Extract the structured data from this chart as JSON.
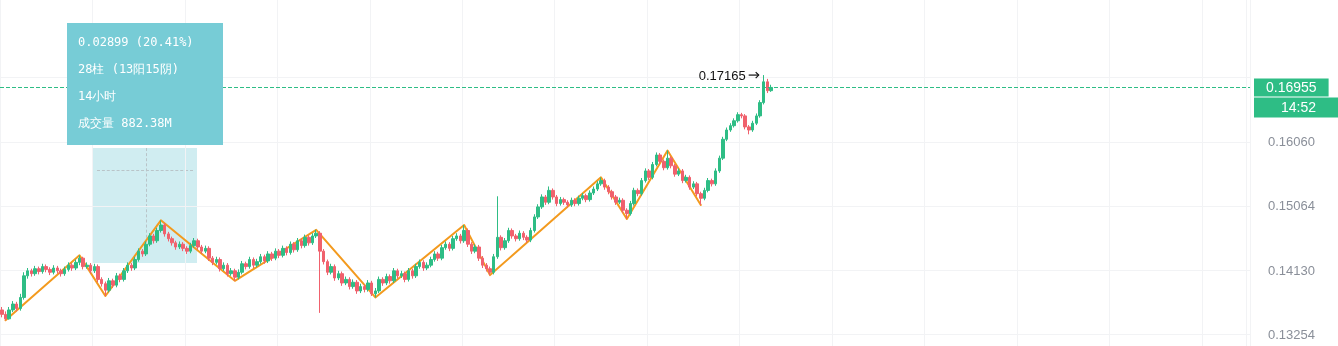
{
  "chart_data": {
    "type": "candlestick",
    "log": true,
    "grid": true,
    "tick_labels": "y",
    "marker": "none",
    "categories": [
      null,
      null,
      null,
      null,
      null,
      null,
      null,
      null,
      null,
      null,
      null,
      null,
      null,
      null,
      null,
      null,
      null,
      null,
      null,
      null,
      null,
      null,
      null,
      null,
      null,
      null,
      null,
      null,
      null,
      null,
      null,
      null,
      null,
      null,
      null,
      null,
      null,
      null,
      null,
      null,
      null,
      null,
      null,
      null,
      null,
      null,
      null,
      null,
      null,
      null,
      null,
      null,
      null,
      null,
      null,
      null,
      null,
      null,
      null,
      null,
      null,
      null,
      null,
      null,
      null,
      null,
      null,
      null,
      null,
      null,
      null,
      null,
      null,
      null,
      null,
      null,
      null,
      null,
      null,
      null,
      null,
      null,
      null,
      null,
      null,
      null,
      null,
      null,
      null,
      null,
      null,
      null,
      null,
      null,
      null,
      null,
      null,
      null,
      null,
      null,
      null,
      null,
      null,
      null,
      null,
      null,
      null,
      null,
      null,
      null,
      null,
      null,
      null,
      null,
      null,
      null,
      null,
      null,
      null,
      null,
      null,
      null,
      null,
      null,
      null,
      null,
      null,
      null,
      null,
      null,
      null,
      null,
      null,
      null,
      null,
      null,
      null,
      null,
      null,
      null,
      null,
      null,
      null,
      null,
      null,
      null,
      null,
      null,
      null,
      null,
      null,
      null,
      null,
      null,
      null,
      null,
      null,
      null,
      null,
      null,
      null,
      null,
      null,
      null,
      null,
      null,
      null,
      null,
      null,
      null,
      null,
      null,
      null,
      null,
      null,
      null,
      null,
      null,
      null,
      null,
      null,
      null,
      null,
      null,
      null,
      null,
      null,
      null,
      null,
      null,
      null,
      null,
      null,
      null,
      null,
      null,
      null,
      null,
      null,
      null,
      null,
      null,
      null,
      null,
      null,
      null,
      null,
      null,
      null,
      null,
      null,
      null,
      null,
      null,
      null,
      null,
      null,
      null,
      null,
      null,
      null,
      null,
      null,
      null,
      null,
      null,
      null,
      null,
      null,
      null,
      null,
      null,
      null,
      null,
      null,
      null,
      null,
      null,
      null,
      null,
      null,
      null,
      null,
      null,
      null,
      null,
      null,
      null,
      null,
      null,
      null,
      null,
      null,
      null,
      null,
      null,
      null,
      null,
      null,
      null,
      null,
      null,
      null,
      null,
      null,
      null,
      null,
      null,
      null,
      null,
      null,
      null,
      null,
      null,
      null,
      null,
      null,
      null,
      null,
      null,
      null,
      null,
      null,
      null,
      null,
      null,
      null,
      null,
      null,
      null,
      null,
      null,
      null,
      null,
      null,
      null,
      null,
      null,
      null,
      null,
      null,
      null,
      null,
      null,
      null,
      null,
      null,
      null,
      null,
      null,
      null,
      null,
      null,
      null,
      null,
      null,
      null,
      null,
      null,
      null,
      null,
      null,
      null,
      null,
      null,
      null,
      null,
      null,
      null,
      null,
      null,
      null,
      null,
      null,
      null,
      null,
      null,
      null
    ],
    "ohlc": [
      [
        0.1358,
        0.1362,
        0.1348,
        0.1352
      ],
      [
        0.1352,
        0.1356,
        0.1344,
        0.1346
      ],
      [
        0.1346,
        0.1362,
        0.1345,
        0.1358
      ],
      [
        0.1358,
        0.137,
        0.1355,
        0.1366
      ],
      [
        0.1366,
        0.1369,
        0.1356,
        0.136
      ],
      [
        0.136,
        0.138,
        0.1357,
        0.1375
      ],
      [
        0.1375,
        0.141,
        0.1372,
        0.1405
      ],
      [
        0.1405,
        0.1416,
        0.1401,
        0.1412
      ],
      [
        0.1412,
        0.1415,
        0.1404,
        0.1408
      ],
      [
        0.1408,
        0.1419,
        0.1405,
        0.1415
      ],
      [
        0.1415,
        0.1418,
        0.1407,
        0.1411
      ],
      [
        0.1411,
        0.1422,
        0.1408,
        0.1418
      ],
      [
        0.1418,
        0.1421,
        0.141,
        0.1414
      ],
      [
        0.1414,
        0.1417,
        0.1406,
        0.141
      ],
      [
        0.141,
        0.142,
        0.1407,
        0.1416
      ],
      [
        0.1416,
        0.1419,
        0.1408,
        0.1412
      ],
      [
        0.1412,
        0.1415,
        0.1404,
        0.1408
      ],
      [
        0.1408,
        0.1418,
        0.1405,
        0.1414
      ],
      [
        0.1414,
        0.1424,
        0.1411,
        0.142
      ],
      [
        0.142,
        0.1423,
        0.1412,
        0.1416
      ],
      [
        0.1416,
        0.1428,
        0.1413,
        0.1424
      ],
      [
        0.1424,
        0.1434,
        0.142,
        0.143
      ],
      [
        0.143,
        0.1432,
        0.1414,
        0.1418
      ],
      [
        0.1418,
        0.1424,
        0.1415,
        0.142
      ],
      [
        0.142,
        0.1423,
        0.1408,
        0.1412
      ],
      [
        0.1412,
        0.1422,
        0.1409,
        0.1418
      ],
      [
        0.1418,
        0.1421,
        0.1396,
        0.14
      ],
      [
        0.14,
        0.1403,
        0.139,
        0.1394
      ],
      [
        0.1394,
        0.1397,
        0.1377,
        0.1385
      ],
      [
        0.1385,
        0.1402,
        0.1382,
        0.1398
      ],
      [
        0.1398,
        0.1401,
        0.1388,
        0.1392
      ],
      [
        0.1392,
        0.1409,
        0.1389,
        0.1405
      ],
      [
        0.1405,
        0.1408,
        0.1396,
        0.14
      ],
      [
        0.14,
        0.1416,
        0.1397,
        0.1412
      ],
      [
        0.1412,
        0.1424,
        0.1409,
        0.142
      ],
      [
        0.142,
        0.1423,
        0.1412,
        0.1416
      ],
      [
        0.1416,
        0.1432,
        0.1413,
        0.1428
      ],
      [
        0.1428,
        0.1444,
        0.1425,
        0.144
      ],
      [
        0.144,
        0.1443,
        0.1432,
        0.1436
      ],
      [
        0.1436,
        0.1454,
        0.1433,
        0.145
      ],
      [
        0.145,
        0.1466,
        0.1447,
        0.1462
      ],
      [
        0.1462,
        0.1465,
        0.1451,
        0.1455
      ],
      [
        0.1455,
        0.1474,
        0.1452,
        0.147
      ],
      [
        0.147,
        0.1485,
        0.1467,
        0.1478
      ],
      [
        0.1478,
        0.1481,
        0.1461,
        0.1465
      ],
      [
        0.1465,
        0.1468,
        0.1454,
        0.1458
      ],
      [
        0.1458,
        0.1461,
        0.1448,
        0.1452
      ],
      [
        0.1452,
        0.1455,
        0.1442,
        0.1446
      ],
      [
        0.1446,
        0.1454,
        0.1443,
        0.145
      ],
      [
        0.145,
        0.1453,
        0.144,
        0.1444
      ],
      [
        0.1444,
        0.1447,
        0.1436,
        0.144
      ],
      [
        0.144,
        0.1452,
        0.1437,
        0.1448
      ],
      [
        0.1448,
        0.1459,
        0.1445,
        0.1455
      ],
      [
        0.1455,
        0.1458,
        0.1442,
        0.1446
      ],
      [
        0.1446,
        0.1449,
        0.1436,
        0.144
      ],
      [
        0.144,
        0.1448,
        0.1437,
        0.1444
      ],
      [
        0.1444,
        0.1447,
        0.1426,
        0.143
      ],
      [
        0.143,
        0.1433,
        0.142,
        0.1424
      ],
      [
        0.1424,
        0.1432,
        0.1421,
        0.1428
      ],
      [
        0.1428,
        0.1431,
        0.1411,
        0.1415
      ],
      [
        0.1415,
        0.1424,
        0.1412,
        0.142
      ],
      [
        0.142,
        0.1423,
        0.1404,
        0.1408
      ],
      [
        0.1408,
        0.1416,
        0.1405,
        0.1412
      ],
      [
        0.1412,
        0.1415,
        0.1398,
        0.1403
      ],
      [
        0.1403,
        0.1414,
        0.14,
        0.141
      ],
      [
        0.141,
        0.1426,
        0.1407,
        0.1422
      ],
      [
        0.1422,
        0.1425,
        0.1414,
        0.1418
      ],
      [
        0.1418,
        0.1432,
        0.1415,
        0.1428
      ],
      [
        0.1428,
        0.1431,
        0.1416,
        0.142
      ],
      [
        0.142,
        0.1429,
        0.1417,
        0.1425
      ],
      [
        0.1425,
        0.1436,
        0.1422,
        0.1432
      ],
      [
        0.1432,
        0.1435,
        0.1422,
        0.1426
      ],
      [
        0.1426,
        0.144,
        0.1423,
        0.1436
      ],
      [
        0.1436,
        0.1439,
        0.1426,
        0.143
      ],
      [
        0.143,
        0.1444,
        0.1427,
        0.144
      ],
      [
        0.144,
        0.1443,
        0.143,
        0.1434
      ],
      [
        0.1434,
        0.1448,
        0.1431,
        0.1444
      ],
      [
        0.1444,
        0.1447,
        0.1434,
        0.1438
      ],
      [
        0.1438,
        0.1454,
        0.1435,
        0.145
      ],
      [
        0.145,
        0.1453,
        0.1438,
        0.1442
      ],
      [
        0.1442,
        0.1459,
        0.1439,
        0.1455
      ],
      [
        0.1455,
        0.1458,
        0.1444,
        0.1448
      ],
      [
        0.1448,
        0.1464,
        0.1445,
        0.146
      ],
      [
        0.146,
        0.1463,
        0.1448,
        0.1452
      ],
      [
        0.1452,
        0.1466,
        0.1449,
        0.1462
      ],
      [
        0.1462,
        0.1471,
        0.1459,
        0.1466
      ],
      [
        0.1466,
        0.1469,
        0.1354,
        0.144
      ],
      [
        0.144,
        0.1443,
        0.1421,
        0.1425
      ],
      [
        0.1425,
        0.1428,
        0.1406,
        0.141
      ],
      [
        0.141,
        0.1422,
        0.1407,
        0.1418
      ],
      [
        0.1418,
        0.1421,
        0.1398,
        0.1402
      ],
      [
        0.1402,
        0.1412,
        0.1399,
        0.1408
      ],
      [
        0.1408,
        0.1411,
        0.1391,
        0.1395
      ],
      [
        0.1395,
        0.1404,
        0.1392,
        0.14
      ],
      [
        0.14,
        0.1403,
        0.1386,
        0.139
      ],
      [
        0.139,
        0.14,
        0.1387,
        0.1396
      ],
      [
        0.1396,
        0.1399,
        0.138,
        0.1384
      ],
      [
        0.1384,
        0.1394,
        0.1381,
        0.139
      ],
      [
        0.139,
        0.1393,
        0.1382,
        0.1386
      ],
      [
        0.1386,
        0.1399,
        0.1383,
        0.1395
      ],
      [
        0.1395,
        0.1398,
        0.1377,
        0.138
      ],
      [
        0.138,
        0.1388,
        0.1375,
        0.1384
      ],
      [
        0.1384,
        0.1404,
        0.1381,
        0.14
      ],
      [
        0.14,
        0.1403,
        0.1391,
        0.1395
      ],
      [
        0.1395,
        0.1408,
        0.1392,
        0.1404
      ],
      [
        0.1404,
        0.1407,
        0.1394,
        0.1398
      ],
      [
        0.1398,
        0.1416,
        0.1395,
        0.1412
      ],
      [
        0.1412,
        0.1415,
        0.1401,
        0.1405
      ],
      [
        0.1405,
        0.1412,
        0.1402,
        0.1408
      ],
      [
        0.1408,
        0.1411,
        0.1396,
        0.14
      ],
      [
        0.14,
        0.1416,
        0.1397,
        0.1412
      ],
      [
        0.1412,
        0.1415,
        0.1401,
        0.1405
      ],
      [
        0.1405,
        0.1422,
        0.1402,
        0.1418
      ],
      [
        0.1418,
        0.1428,
        0.1415,
        0.1424
      ],
      [
        0.1424,
        0.1427,
        0.1412,
        0.1416
      ],
      [
        0.1416,
        0.1424,
        0.1413,
        0.142
      ],
      [
        0.142,
        0.1432,
        0.1417,
        0.1428
      ],
      [
        0.1428,
        0.144,
        0.1425,
        0.1436
      ],
      [
        0.1436,
        0.1439,
        0.1426,
        0.143
      ],
      [
        0.143,
        0.1449,
        0.1427,
        0.1445
      ],
      [
        0.1445,
        0.1454,
        0.1442,
        0.145
      ],
      [
        0.145,
        0.1453,
        0.144,
        0.1444
      ],
      [
        0.1444,
        0.1462,
        0.1441,
        0.1458
      ],
      [
        0.1458,
        0.1466,
        0.1455,
        0.1462
      ],
      [
        0.1462,
        0.1465,
        0.1451,
        0.1455
      ],
      [
        0.1455,
        0.1478,
        0.1452,
        0.147
      ],
      [
        0.147,
        0.1473,
        0.1446,
        0.145
      ],
      [
        0.145,
        0.1453,
        0.1436,
        0.144
      ],
      [
        0.144,
        0.145,
        0.1437,
        0.1446
      ],
      [
        0.1446,
        0.1449,
        0.1426,
        0.143
      ],
      [
        0.143,
        0.1433,
        0.1416,
        0.142
      ],
      [
        0.142,
        0.1423,
        0.1411,
        0.1415
      ],
      [
        0.1415,
        0.1418,
        0.1406,
        0.141
      ],
      [
        0.141,
        0.1436,
        0.1407,
        0.1432
      ],
      [
        0.1432,
        0.1521,
        0.1429,
        0.146
      ],
      [
        0.146,
        0.1463,
        0.1441,
        0.1445
      ],
      [
        0.1445,
        0.1459,
        0.1442,
        0.1455
      ],
      [
        0.1455,
        0.1474,
        0.1452,
        0.147
      ],
      [
        0.147,
        0.1473,
        0.1458,
        0.1462
      ],
      [
        0.1462,
        0.1465,
        0.1454,
        0.1458
      ],
      [
        0.1458,
        0.147,
        0.1455,
        0.1466
      ],
      [
        0.1466,
        0.1469,
        0.1456,
        0.146
      ],
      [
        0.146,
        0.1463,
        0.1452,
        0.1456
      ],
      [
        0.1456,
        0.1474,
        0.1453,
        0.147
      ],
      [
        0.147,
        0.1494,
        0.1467,
        0.149
      ],
      [
        0.149,
        0.1509,
        0.1487,
        0.1505
      ],
      [
        0.1505,
        0.1524,
        0.1502,
        0.152
      ],
      [
        0.152,
        0.1523,
        0.1508,
        0.1512
      ],
      [
        0.1512,
        0.1536,
        0.1509,
        0.153
      ],
      [
        0.153,
        0.1533,
        0.1516,
        0.152
      ],
      [
        0.152,
        0.1523,
        0.1506,
        0.151
      ],
      [
        0.151,
        0.152,
        0.1507,
        0.1516
      ],
      [
        0.1516,
        0.1519,
        0.1508,
        0.1512
      ],
      [
        0.1512,
        0.1515,
        0.1504,
        0.1508
      ],
      [
        0.1508,
        0.1519,
        0.1505,
        0.1515
      ],
      [
        0.1515,
        0.1518,
        0.1506,
        0.151
      ],
      [
        0.151,
        0.1522,
        0.1507,
        0.1518
      ],
      [
        0.1518,
        0.1526,
        0.1515,
        0.1522
      ],
      [
        0.1522,
        0.1525,
        0.1512,
        0.1516
      ],
      [
        0.1516,
        0.153,
        0.1513,
        0.1526
      ],
      [
        0.1526,
        0.1536,
        0.1523,
        0.1532
      ],
      [
        0.1532,
        0.1544,
        0.1529,
        0.154
      ],
      [
        0.154,
        0.155,
        0.1537,
        0.1545
      ],
      [
        0.1545,
        0.1548,
        0.1531,
        0.1535
      ],
      [
        0.1535,
        0.1538,
        0.1524,
        0.1528
      ],
      [
        0.1528,
        0.1531,
        0.1516,
        0.152
      ],
      [
        0.152,
        0.1523,
        0.1508,
        0.1512
      ],
      [
        0.1512,
        0.1519,
        0.1509,
        0.1515
      ],
      [
        0.1515,
        0.1518,
        0.1496,
        0.15
      ],
      [
        0.15,
        0.1503,
        0.1487,
        0.1495
      ],
      [
        0.1495,
        0.1514,
        0.1492,
        0.151
      ],
      [
        0.151,
        0.1534,
        0.1507,
        0.153
      ],
      [
        0.153,
        0.1533,
        0.1521,
        0.1525
      ],
      [
        0.1525,
        0.1549,
        0.1522,
        0.1545
      ],
      [
        0.1545,
        0.1564,
        0.1542,
        0.156
      ],
      [
        0.156,
        0.1563,
        0.1546,
        0.155
      ],
      [
        0.155,
        0.1574,
        0.1547,
        0.157
      ],
      [
        0.157,
        0.1589,
        0.1567,
        0.1585
      ],
      [
        0.1585,
        0.1588,
        0.1571,
        0.1575
      ],
      [
        0.1575,
        0.1578,
        0.1561,
        0.1565
      ],
      [
        0.1565,
        0.1592,
        0.1562,
        0.158
      ],
      [
        0.158,
        0.1583,
        0.1564,
        0.1568
      ],
      [
        0.1568,
        0.1571,
        0.1551,
        0.1555
      ],
      [
        0.1555,
        0.1564,
        0.1552,
        0.156
      ],
      [
        0.156,
        0.1563,
        0.1541,
        0.1545
      ],
      [
        0.1545,
        0.1554,
        0.1542,
        0.155
      ],
      [
        0.155,
        0.1553,
        0.1531,
        0.1535
      ],
      [
        0.1535,
        0.1544,
        0.1532,
        0.154
      ],
      [
        0.154,
        0.1543,
        0.1521,
        0.1525
      ],
      [
        0.1525,
        0.1528,
        0.1508,
        0.1518
      ],
      [
        0.1518,
        0.1534,
        0.1515,
        0.153
      ],
      [
        0.153,
        0.1549,
        0.1527,
        0.1545
      ],
      [
        0.1545,
        0.1548,
        0.1536,
        0.154
      ],
      [
        0.154,
        0.1564,
        0.1537,
        0.156
      ],
      [
        0.156,
        0.1584,
        0.1557,
        0.158
      ],
      [
        0.158,
        0.1614,
        0.1577,
        0.161
      ],
      [
        0.161,
        0.1629,
        0.1607,
        0.1625
      ],
      [
        0.1625,
        0.1636,
        0.1622,
        0.1632
      ],
      [
        0.1632,
        0.1644,
        0.1629,
        0.164
      ],
      [
        0.164,
        0.1654,
        0.1637,
        0.165
      ],
      [
        0.165,
        0.1653,
        0.1644,
        0.1648
      ],
      [
        0.1648,
        0.1651,
        0.1626,
        0.163
      ],
      [
        0.163,
        0.1633,
        0.1618,
        0.1625
      ],
      [
        0.1625,
        0.164,
        0.1622,
        0.1636
      ],
      [
        0.1636,
        0.1652,
        0.1633,
        0.1648
      ],
      [
        0.1648,
        0.1674,
        0.1645,
        0.167
      ],
      [
        0.167,
        0.17165,
        0.1667,
        0.1705
      ],
      [
        0.1705,
        0.171,
        0.1686,
        0.169
      ],
      [
        0.169,
        0.17,
        0.1688,
        0.16955
      ],
      null,
      null,
      null,
      null,
      null,
      null,
      null,
      null,
      null,
      null,
      null,
      null,
      null,
      null,
      null,
      null,
      null,
      null,
      null,
      null,
      null,
      null,
      null,
      null,
      null,
      null,
      null,
      null,
      null,
      null,
      null,
      null,
      null,
      null,
      null,
      null,
      null,
      null,
      null,
      null,
      null,
      null,
      null,
      null,
      null,
      null,
      null,
      null,
      null,
      null,
      null,
      null,
      null,
      null,
      null,
      null,
      null,
      null,
      null,
      null,
      null,
      null,
      null,
      null,
      null,
      null,
      null,
      null,
      null,
      null,
      null,
      null,
      null,
      null,
      null,
      null,
      null,
      null,
      null,
      null,
      null,
      null,
      null,
      null,
      null,
      null,
      null,
      null,
      null,
      null,
      null,
      null,
      null,
      null,
      null,
      null,
      null,
      null,
      null,
      null,
      null,
      null,
      null,
      null,
      null,
      null,
      null,
      null,
      null,
      null,
      null,
      null,
      null,
      null,
      null,
      null,
      null,
      null,
      null,
      null,
      null,
      null,
      null,
      null,
      null,
      null,
      null,
      null,
      null
    ],
    "series": [
      {
        "type": "line",
        "color": "#f39a1e",
        "line_style": "solid",
        "values": [
          null,
          0.1344,
          null,
          null,
          null,
          null,
          null,
          null,
          null,
          null,
          null,
          null,
          null,
          null,
          null,
          null,
          null,
          null,
          null,
          null,
          null,
          0.1434,
          null,
          null,
          null,
          null,
          null,
          null,
          0.1377,
          null,
          null,
          null,
          null,
          null,
          null,
          null,
          null,
          null,
          null,
          null,
          null,
          null,
          null,
          0.1485,
          null,
          null,
          null,
          null,
          null,
          null,
          null,
          null,
          null,
          null,
          null,
          null,
          null,
          null,
          null,
          null,
          null,
          null,
          null,
          0.1398,
          null,
          null,
          null,
          null,
          null,
          null,
          null,
          null,
          null,
          null,
          null,
          null,
          null,
          null,
          null,
          null,
          null,
          null,
          null,
          null,
          null,
          0.1471,
          null,
          null,
          null,
          null,
          null,
          null,
          null,
          null,
          null,
          null,
          null,
          null,
          null,
          null,
          null,
          0.1375,
          null,
          null,
          null,
          null,
          null,
          null,
          null,
          null,
          null,
          null,
          null,
          null,
          null,
          null,
          null,
          null,
          null,
          null,
          null,
          null,
          null,
          null,
          null,
          0.1478,
          null,
          null,
          null,
          null,
          null,
          null,
          0.1406,
          null,
          null,
          null,
          null,
          null,
          null,
          null,
          null,
          null,
          null,
          null,
          null,
          null,
          null,
          null,
          null,
          null,
          null,
          null,
          null,
          null,
          null,
          null,
          null,
          null,
          null,
          null,
          null,
          null,
          0.155,
          null,
          null,
          null,
          null,
          null,
          null,
          0.1487,
          null,
          null,
          null,
          null,
          null,
          null,
          null,
          null,
          null,
          null,
          0.1592,
          null,
          null,
          null,
          null,
          null,
          null,
          null,
          null,
          0.1508,
          null,
          null,
          null,
          null,
          null,
          null,
          null,
          null,
          null,
          null,
          null,
          null,
          null,
          null,
          null,
          null,
          null,
          null,
          null,
          null,
          null,
          null,
          null,
          null,
          null,
          null,
          null,
          null,
          null,
          null,
          null,
          null,
          null,
          null,
          null,
          null,
          null,
          null,
          null,
          null,
          null,
          null,
          null,
          null,
          null,
          null,
          null,
          null,
          null,
          null,
          null,
          null,
          null,
          null,
          null,
          null,
          null,
          null,
          null,
          null,
          null,
          null,
          null,
          null,
          null,
          null,
          null,
          null,
          null,
          null,
          null,
          null,
          null,
          null,
          null,
          null,
          null,
          null,
          null,
          null,
          null,
          null,
          null,
          null,
          null,
          null,
          null,
          null,
          null,
          null,
          null,
          null,
          null,
          null,
          null,
          null,
          null,
          null,
          null,
          null,
          null,
          null,
          null,
          null,
          null,
          null,
          null,
          null,
          null,
          null,
          null,
          null,
          null,
          null,
          null,
          null,
          null,
          null,
          null,
          null,
          null,
          null,
          null,
          null,
          null,
          null,
          null,
          null,
          null,
          null,
          null,
          null,
          null,
          null,
          null,
          null,
          null,
          null,
          null,
          null,
          null,
          null,
          null,
          null,
          null,
          null,
          null,
          null
        ]
      }
    ],
    "ylim": [
      0.131,
      0.185
    ],
    "yticks": [
      0.13254,
      {
        "value": 0.1413,
        "label": "0.14130"
      },
      0.15064,
      {
        "value": 0.1606,
        "label": "0.16060"
      },
      {
        "value": 0.17121,
        "label": null
      }
    ],
    "ref_lines": [
      {
        "axis": "y",
        "value": 0.16955,
        "label": "0.16955",
        "color": "#2ebd85",
        "line_style": "dashed"
      }
    ],
    "annotations": [
      "0.02899 (20.41%)",
      "28柱 (13阳15阴)",
      "14小时",
      "成交量 882.38M",
      "0.17165",
      "14:52"
    ]
  }
}
